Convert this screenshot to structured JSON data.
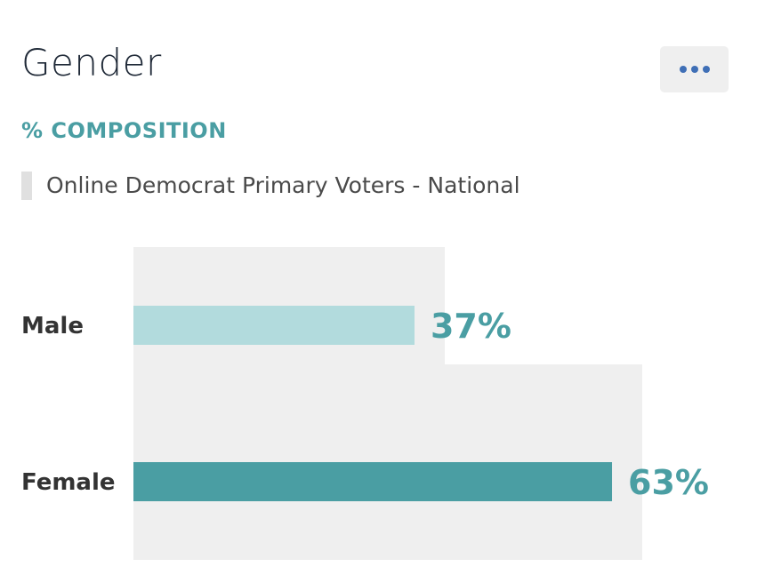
{
  "card": {
    "title": "Gender",
    "metric": "% COMPOSITION",
    "segment": "Online Democrat Primary Voters - National",
    "menu_icon": "ellipsis-icon"
  },
  "colors": {
    "accent": "#4a9ea3",
    "bar_light": "#b2dbdd",
    "bar_dark": "#4a9ea3",
    "track": "#efefef",
    "menu_dots": "#3f6fb6"
  },
  "chart_data": {
    "type": "bar",
    "orientation": "horizontal",
    "title": "Gender",
    "subtitle": "% COMPOSITION",
    "categories": [
      "Male",
      "Female"
    ],
    "series": [
      {
        "name": "Online Democrat Primary Voters - National",
        "values": [
          37,
          63
        ],
        "labels": [
          "37%",
          "63%"
        ]
      }
    ],
    "xlim": [
      0,
      100
    ],
    "grid": false,
    "legend": "top-left"
  }
}
